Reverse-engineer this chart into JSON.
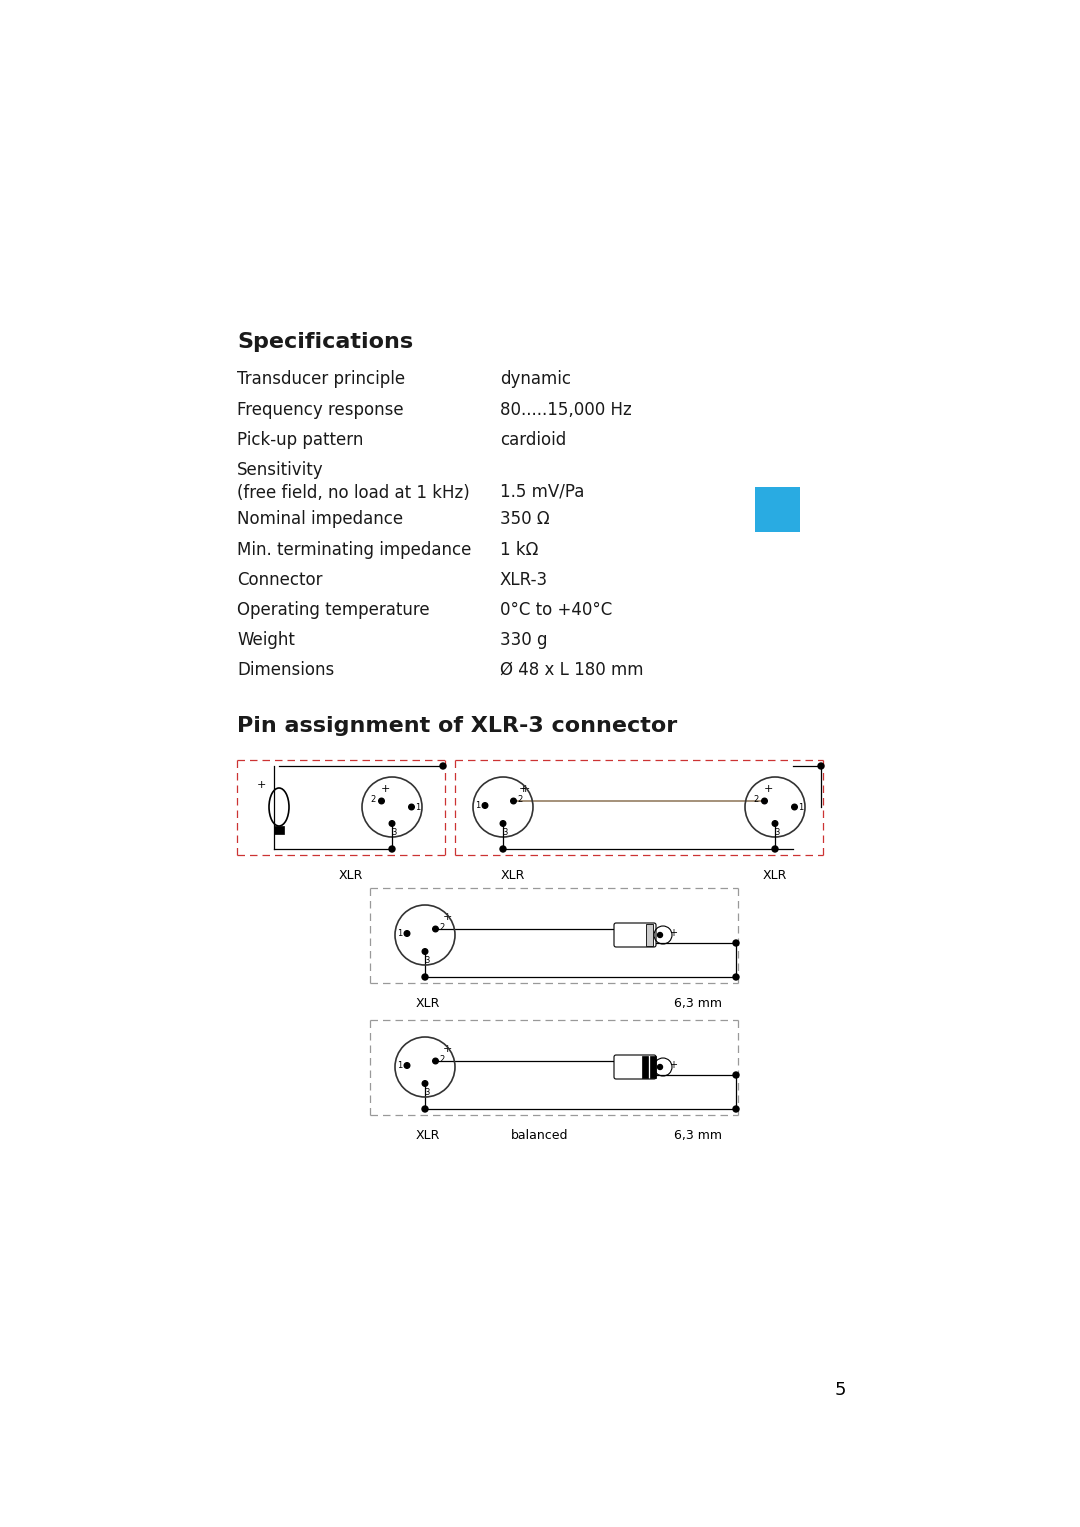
{
  "title": "Specifications",
  "specs": [
    [
      "Transducer principle",
      "dynamic"
    ],
    [
      "Frequency response",
      "80.....15,000 Hz"
    ],
    [
      "Pick-up pattern",
      "cardioid"
    ],
    [
      "Sensitivity\n(free field, no load at 1 kHz)",
      "1.5 mV/Pa"
    ],
    [
      "Nominal impedance",
      "350 Ω"
    ],
    [
      "Min. terminating impedance",
      "1 kΩ"
    ],
    [
      "Connector",
      "XLR-3"
    ],
    [
      "Operating temperature",
      "0°C to +40°C"
    ],
    [
      "Weight",
      "330 g"
    ],
    [
      "Dimensions",
      "Ø 48 x L 180 mm"
    ]
  ],
  "pin_title": "Pin assignment of XLR-3 connector",
  "blue_rect_color": "#29abe2",
  "bg_color": "#ffffff",
  "text_color": "#1a1a1a",
  "page_number": "5"
}
